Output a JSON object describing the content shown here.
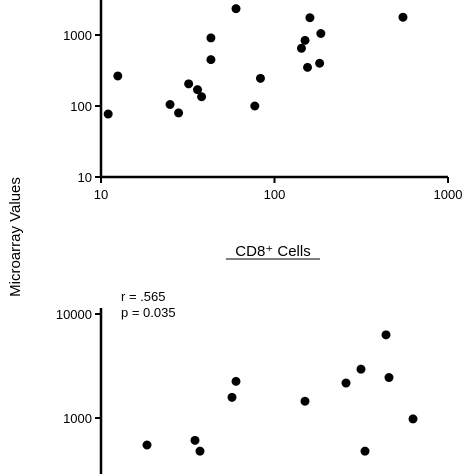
{
  "shared_ylabel": "Microarray Values",
  "chart_data": [
    {
      "type": "scatter",
      "title": "",
      "xlabel": "",
      "ylabel": "Microarray Values",
      "x_scale": "log",
      "y_scale": "log",
      "xlim": [
        10,
        1000
      ],
      "ylim": [
        10,
        10000
      ],
      "x_ticks": [
        10,
        100,
        1000
      ],
      "x_tick_labels": [
        "10",
        "100",
        "1000"
      ],
      "y_ticks": [
        10,
        100,
        1000
      ],
      "y_tick_labels": [
        "10",
        "100",
        "1000"
      ],
      "grid": false,
      "marker_color": "#000000",
      "points": [
        {
          "x": 11,
          "y": 77
        },
        {
          "x": 12.5,
          "y": 265
        },
        {
          "x": 25,
          "y": 105
        },
        {
          "x": 28,
          "y": 80
        },
        {
          "x": 32,
          "y": 205
        },
        {
          "x": 36,
          "y": 170
        },
        {
          "x": 38,
          "y": 135
        },
        {
          "x": 43,
          "y": 450
        },
        {
          "x": 43,
          "y": 910
        },
        {
          "x": 60,
          "y": 2350
        },
        {
          "x": 77,
          "y": 100
        },
        {
          "x": 83,
          "y": 245
        },
        {
          "x": 143,
          "y": 650
        },
        {
          "x": 150,
          "y": 840
        },
        {
          "x": 155,
          "y": 350
        },
        {
          "x": 160,
          "y": 1750
        },
        {
          "x": 182,
          "y": 400
        },
        {
          "x": 185,
          "y": 1050
        },
        {
          "x": 550,
          "y": 1780
        }
      ]
    },
    {
      "type": "scatter",
      "title": "CD8⁺ Cells",
      "stats": [
        "r = .565",
        "p = 0.035"
      ],
      "xlabel": "",
      "ylabel": "Microarray Values",
      "y_scale": "log",
      "ylim": [
        300,
        10000
      ],
      "y_ticks": [
        1000,
        10000
      ],
      "y_tick_labels": [
        "1000",
        "10000"
      ],
      "grid": false,
      "marker_color": "#000000",
      "points": [
        {
          "x": 147,
          "y": 550
        },
        {
          "x": 195,
          "y": 610
        },
        {
          "x": 200,
          "y": 480
        },
        {
          "x": 232,
          "y": 1580
        },
        {
          "x": 236,
          "y": 2250
        },
        {
          "x": 305,
          "y": 1450
        },
        {
          "x": 346,
          "y": 2170
        },
        {
          "x": 361,
          "y": 2950
        },
        {
          "x": 365,
          "y": 480
        },
        {
          "x": 386,
          "y": 6300
        },
        {
          "x": 389,
          "y": 2450
        },
        {
          "x": 413,
          "y": 980
        }
      ]
    }
  ]
}
